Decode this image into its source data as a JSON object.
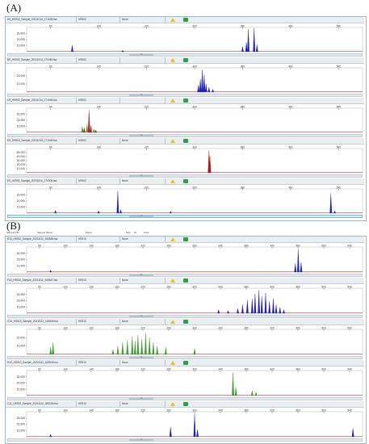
{
  "panels": [
    {
      "label": "(A)",
      "x_ticks": [
        "60",
        "140",
        "220",
        "300",
        "380",
        "460",
        "540"
      ],
      "scrollbar_mark": "III",
      "lanes": [
        {
          "file": "H9_HS902_Sample_20211014_171045.fsa",
          "dye": "HS902",
          "status": "None",
          "y_ticks": [
            "30,000",
            "20,000",
            "10,000"
          ],
          "color": "#1f1fb0",
          "peaks": [
            [
              95,
              0.28
            ],
            [
              200,
              0.06
            ],
            [
              450,
              0.22
            ],
            [
              458,
              0.4
            ],
            [
              462,
              0.96
            ],
            [
              474,
              1.0
            ],
            [
              480,
              0.3
            ]
          ]
        },
        {
          "file": "B9_HS902_Sample_20211014_171045.fsa",
          "dye": "HS902",
          "status": "",
          "y_ticks": [
            "20,000",
            "10,000"
          ],
          "color": "#1f1fb0",
          "peaks": [
            [
              358,
              0.3
            ],
            [
              362,
              0.55
            ],
            [
              366,
              0.95
            ],
            [
              370,
              0.75
            ],
            [
              374,
              0.35
            ],
            [
              380,
              0.2
            ],
            [
              388,
              0.12
            ]
          ]
        },
        {
          "file": "C9_HS902_Sample_20211014_171045.fsa",
          "dye": "HS902",
          "status": "",
          "y_ticks": [
            "30,000",
            "20,000",
            "10,000"
          ],
          "color": "#b01818",
          "peaks": [
            [
              120,
              0.2
            ],
            [
              130,
              0.95
            ],
            [
              134,
              0.3
            ],
            [
              144,
              0.1
            ]
          ],
          "secondary": {
            "color": "#3a9a2a",
            "peaks": [
              [
                116,
                0.25
              ],
              [
                126,
                0.35
              ],
              [
                140,
                0.15
              ]
            ]
          }
        },
        {
          "file": "D9_HS902_Sample_20211014_171045.fsa",
          "dye": "HS902",
          "status": "None",
          "y_ticks": [
            "50,000",
            "40,000",
            "30,000",
            "20,000",
            "10,000"
          ],
          "color": "#b01818",
          "peaks": [
            [
              380,
              0.95
            ],
            [
              382,
              0.7
            ]
          ]
        },
        {
          "file": "E9_HS902_Sample_20211014_170006.fsa",
          "dye": "HS902",
          "status": "None",
          "y_ticks": [
            "30,000",
            "20,000",
            "10,000"
          ],
          "color": "#1f1fb0",
          "peaks": [
            [
              60,
              0.12
            ],
            [
              150,
              0.1
            ],
            [
              190,
              0.95
            ],
            [
              196,
              0.15
            ],
            [
              300,
              0.08
            ],
            [
              634,
              0.85
            ],
            [
              642,
              0.1
            ]
          ]
        }
      ]
    },
    {
      "label": "(B)",
      "column_headers": [
        "Sample File",
        "Sample Name",
        "Panel",
        "Size",
        "Ht",
        "Area"
      ],
      "x_ticks": [
        "60",
        "100",
        "140",
        "180",
        "220",
        "260",
        "300",
        "340",
        "380",
        "420",
        "460",
        "500",
        "540"
      ],
      "scrollbar_mark": "III",
      "lanes": [
        {
          "file": "E10_HS910_Sample_20211111_163548.fsa",
          "dye": "HS910",
          "status": "None",
          "y_ticks": [
            "30,000",
            "20,000",
            "10,000"
          ],
          "color": "#1f1fb0",
          "peaks": [
            [
              50,
              0.08
            ],
            [
              560,
              0.35
            ],
            [
              566,
              0.95
            ],
            [
              572,
              0.4
            ]
          ]
        },
        {
          "file": "F10_HS910_Sample_20211111_163547.fsa",
          "dye": "HS910",
          "status": "None",
          "y_ticks": [
            "30,000",
            "20,000",
            "10,000"
          ],
          "color": "#1f1fb0",
          "peaks": [
            [
              440,
              0.2
            ],
            [
              450,
              0.35
            ],
            [
              460,
              0.55
            ],
            [
              470,
              0.6
            ],
            [
              476,
              0.8
            ],
            [
              484,
              0.95
            ],
            [
              490,
              0.7
            ],
            [
              498,
              0.85
            ],
            [
              506,
              0.5
            ],
            [
              514,
              0.6
            ],
            [
              520,
              0.35
            ],
            [
              528,
              0.25
            ],
            [
              536,
              0.15
            ],
            [
              400,
              0.15
            ],
            [
              420,
              0.1
            ]
          ]
        },
        {
          "file": "G10_HS910_Sample_20211111_163549.fsa",
          "dye": "HS910",
          "status": "None",
          "y_ticks": [
            "20,000",
            "10,000"
          ],
          "color": "#3a9a2a",
          "peaks": [
            [
              50,
              0.3
            ],
            [
              55,
              0.5
            ],
            [
              180,
              0.2
            ],
            [
              190,
              0.35
            ],
            [
              200,
              0.5
            ],
            [
              210,
              0.6
            ],
            [
              220,
              0.75
            ],
            [
              226,
              0.55
            ],
            [
              232,
              0.8
            ],
            [
              240,
              0.65
            ],
            [
              248,
              0.9
            ],
            [
              256,
              0.7
            ],
            [
              264,
              0.5
            ],
            [
              272,
              0.35
            ],
            [
              290,
              0.3
            ],
            [
              350,
              0.25
            ]
          ]
        },
        {
          "file": "H10_HS910_Sample_20211111_163549.fsa",
          "dye": "HS910",
          "status": "None",
          "y_ticks": [
            "30,000",
            "20,000",
            "10,000"
          ],
          "color": "#3a9a2a",
          "peaks": [
            [
              430,
              0.95
            ],
            [
              436,
              0.35
            ],
            [
              470,
              0.2
            ],
            [
              478,
              0.15
            ]
          ]
        },
        {
          "file": "C11_HS910_Sample_20211112_090226.fsa",
          "dye": "HS910",
          "status": "None",
          "y_ticks": [
            "30,000",
            "20,000",
            "10,000"
          ],
          "color": "#1f1fb0",
          "peaks": [
            [
              50,
              0.1
            ],
            [
              300,
              0.4
            ],
            [
              350,
              0.95
            ],
            [
              356,
              0.3
            ],
            [
              680,
              0.35
            ]
          ]
        }
      ]
    }
  ]
}
